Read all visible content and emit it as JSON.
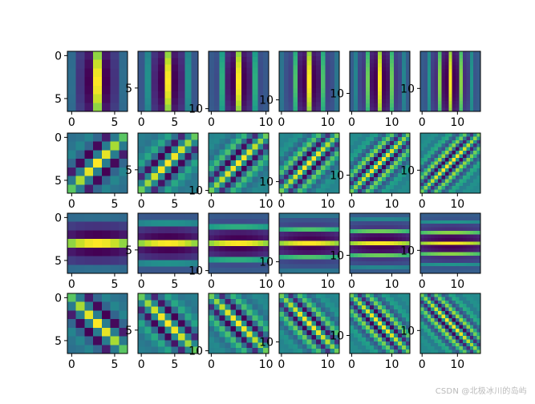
{
  "figure": {
    "watermark": "CSDN @北极冰川的岛屿"
  },
  "chart_data": {
    "type": "heatmap",
    "grid": {
      "rows": 4,
      "cols": 6
    },
    "colormap": "viridis",
    "axes": false,
    "kernel_sizes": [
      7,
      9,
      11,
      13,
      15,
      17
    ],
    "orientations_deg": [
      0,
      45,
      90,
      135
    ],
    "x_ticks": [
      [
        "0",
        "5"
      ],
      [
        "0",
        "5"
      ],
      [
        "0",
        "10"
      ],
      [
        "0",
        "10"
      ],
      [
        "0",
        "10"
      ],
      [
        "0",
        "10"
      ]
    ],
    "y_ticks": [
      [
        "0",
        "5"
      ],
      [
        "5"
      ],
      [
        "10"
      ],
      [
        "10"
      ],
      [
        "10"
      ],
      [
        "10"
      ]
    ],
    "x_tick_values": [
      [
        0,
        5
      ],
      [
        0,
        5
      ],
      [
        0,
        10
      ],
      [
        0,
        10
      ],
      [
        0,
        10
      ],
      [
        0,
        10
      ]
    ],
    "y_tick_values": [
      [
        0,
        5
      ],
      [
        5
      ],
      [
        10
      ],
      [
        10
      ],
      [
        10
      ],
      [
        10
      ]
    ],
    "images": "4x6 grid of Gabor-like filter kernels (viridis colormap). Rows show orientations 0°, 45°, 90°, 135°. Columns show increasing kernel size (7, 9, 11, 13, 15, 17)."
  }
}
